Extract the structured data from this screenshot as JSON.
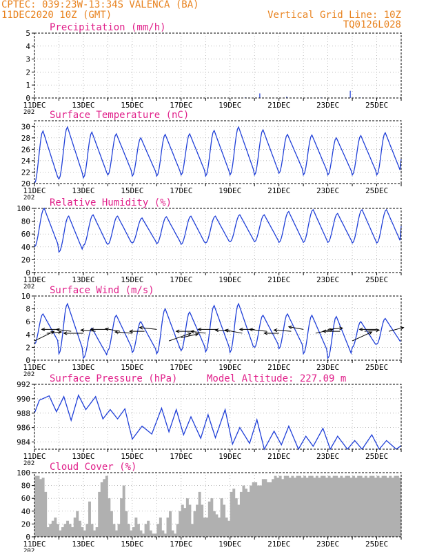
{
  "header": {
    "line1_left": "CPTEC:   039:23W-13:34S   VALENCA (BA)",
    "line2_left": "11DEC2020 10Z (GMT)",
    "line2_right": "Vertical Grid Line: 10Z",
    "line3_right": "TQ0126L028"
  },
  "colors": {
    "header": "#e8821e",
    "title": "#e0208a",
    "series": "#1f3fd8",
    "cloud": "#b0b0b0",
    "grid": "#9a9a9a"
  },
  "x_axis": {
    "tick_labels": [
      "11DEC",
      "13DEC",
      "15DEC",
      "17DEC",
      "19DEC",
      "21DEC",
      "23DEC",
      "25DEC"
    ],
    "year_fragment": "202",
    "start_day": 11,
    "end_day": 26,
    "label_every_days": 2
  },
  "chart_data": [
    {
      "id": "precipitation",
      "type": "bar",
      "title": "Precipitation (mm/h)",
      "ylim": [
        0,
        5
      ],
      "yticks": [
        0,
        1,
        2,
        3,
        4,
        5
      ],
      "x_unit": "days since 11DEC2020 10Z",
      "x": [
        8.6,
        9.2,
        10.3,
        11.7,
        12.9,
        13.3
      ],
      "values": [
        0.05,
        0.35,
        0.1,
        0.05,
        0.55,
        0.05
      ]
    },
    {
      "id": "temperature",
      "type": "line",
      "title": "Surface Temperature (nC)",
      "ylim": [
        20,
        31
      ],
      "yticks": [
        20,
        22,
        24,
        26,
        28,
        30
      ],
      "daily_min": [
        20.0,
        20.8,
        21.0,
        21.5,
        21.3,
        21.3,
        21.5,
        21.3,
        21.5,
        21.5,
        21.8,
        21.5,
        21.5,
        21.5,
        21.5
      ],
      "daily_max": [
        29.2,
        29.9,
        29.0,
        28.7,
        28.0,
        28.6,
        28.7,
        29.3,
        29.9,
        29.4,
        28.6,
        28.5,
        28.0,
        28.4,
        28.9
      ],
      "end_value": 24.3
    },
    {
      "id": "humidity",
      "type": "line",
      "title": "Relative Humidity (%)",
      "ylim": [
        0,
        100
      ],
      "yticks": [
        0,
        20,
        40,
        60,
        80,
        100
      ],
      "daily_max": [
        100,
        88,
        90,
        88,
        85,
        87,
        88,
        88,
        90,
        90,
        95,
        98,
        92,
        98,
        98
      ],
      "daily_min": [
        40,
        32,
        42,
        44,
        46,
        45,
        44,
        46,
        48,
        48,
        47,
        47,
        47,
        46,
        46
      ],
      "end_value": 72
    },
    {
      "id": "wind",
      "type": "line",
      "title": "Surface Wind (m/s)",
      "ylim": [
        0,
        10
      ],
      "yticks": [
        0,
        2,
        4,
        6,
        8,
        10
      ],
      "daily_max": [
        7.2,
        8.8,
        5.0,
        7.0,
        6.0,
        8.0,
        7.5,
        8.5,
        8.8,
        7.0,
        7.2,
        7.0,
        6.8,
        6.0,
        6.5
      ],
      "daily_min": [
        2.5,
        1.0,
        0.3,
        1.5,
        1.2,
        1.0,
        1.5,
        1.3,
        1.2,
        2.0,
        1.8,
        1.0,
        0.3,
        2.0,
        2.5
      ],
      "end_value": 3.0,
      "arrows": {
        "x_days": [
          0.0,
          0.5,
          1.0,
          1.5,
          2.0,
          2.5,
          3.0,
          3.5,
          4.0,
          4.5,
          5.0,
          5.5,
          6.0,
          6.5,
          7.0,
          7.5,
          8.0,
          8.5,
          9.0,
          9.5,
          10.0,
          10.5,
          11.0,
          11.5,
          12.0,
          12.5,
          13.0,
          13.5,
          14.0,
          14.5
        ],
        "base_ms": [
          3.0,
          4.2,
          4.8,
          4.5,
          4.2,
          4.5,
          4.8,
          4.5,
          4.2,
          4.5,
          4.8,
          3.0,
          3.5,
          4.5,
          4.2,
          4.8,
          4.5,
          4.2,
          4.8,
          4.5,
          4.2,
          4.5,
          4.8,
          4.2,
          4.8,
          4.5,
          3.0,
          4.5,
          4.8,
          4.5
        ],
        "u_days": [
          0.8,
          0.6,
          -0.7,
          -0.6,
          -0.8,
          -0.6,
          -0.7,
          -0.6,
          -0.7,
          -0.6,
          -0.7,
          0.9,
          0.7,
          -0.7,
          -0.6,
          -0.8,
          -0.6,
          -0.7,
          -0.6,
          -0.7,
          -0.6,
          -0.7,
          -0.6,
          0.7,
          0.6,
          -0.7,
          0.8,
          0.6,
          -0.7,
          0.6
        ],
        "v_ms": [
          1.5,
          0.2,
          0.0,
          0.3,
          0.0,
          0.2,
          0.0,
          0.4,
          0.2,
          0.0,
          0.3,
          1.2,
          0.6,
          0.0,
          0.3,
          0.0,
          0.2,
          0.5,
          0.0,
          0.3,
          0.0,
          0.2,
          0.4,
          0.6,
          0.2,
          0.0,
          1.4,
          0.2,
          0.0,
          0.6
        ]
      }
    },
    {
      "id": "pressure",
      "type": "line",
      "title": "Surface Pressure (hPa)",
      "annotation": "Model Altitude: 227.09 m",
      "ylim": [
        983,
        992
      ],
      "yticks": [
        984,
        986,
        988,
        990,
        992
      ],
      "x_days": [
        0.0,
        0.2,
        0.6,
        0.9,
        1.2,
        1.5,
        1.8,
        2.1,
        2.5,
        2.8,
        3.1,
        3.4,
        3.7,
        4.0,
        4.4,
        4.8,
        5.2,
        5.5,
        5.8,
        6.1,
        6.4,
        6.8,
        7.1,
        7.4,
        7.8,
        8.1,
        8.4,
        8.8,
        9.1,
        9.4,
        9.8,
        10.1,
        10.4,
        10.8,
        11.1,
        11.4,
        11.8,
        12.1,
        12.4,
        12.8,
        13.1,
        13.4,
        13.8,
        14.1,
        14.4,
        14.8,
        15.0
      ],
      "values": [
        988.0,
        989.8,
        990.4,
        988.2,
        990.3,
        987.0,
        990.5,
        988.5,
        990.3,
        987.2,
        988.5,
        987.2,
        988.6,
        984.4,
        986.2,
        985.1,
        988.7,
        985.4,
        988.5,
        985.0,
        987.5,
        984.5,
        987.8,
        984.6,
        988.5,
        983.7,
        986.0,
        983.8,
        987.1,
        983.0,
        985.5,
        983.6,
        986.2,
        983.0,
        984.8,
        983.4,
        985.9,
        983.0,
        984.8,
        983.0,
        984.2,
        983.0,
        985.0,
        983.0,
        984.2,
        983.0,
        983.5
      ]
    },
    {
      "id": "cloud",
      "type": "bar",
      "title": "Cloud Cover (%)",
      "ylim": [
        0,
        100
      ],
      "yticks": [
        0,
        20,
        40,
        60,
        80,
        100
      ],
      "x_days": [
        0.0,
        0.1,
        0.2,
        0.3,
        0.4,
        0.5,
        0.6,
        0.7,
        0.8,
        0.9,
        1.0,
        1.1,
        1.2,
        1.3,
        1.4,
        1.5,
        1.6,
        1.7,
        1.8,
        1.9,
        2.0,
        2.1,
        2.2,
        2.3,
        2.4,
        2.5,
        2.6,
        2.7,
        2.8,
        2.9,
        3.0,
        3.1,
        3.2,
        3.3,
        3.4,
        3.5,
        3.6,
        3.7,
        3.8,
        3.9,
        4.0,
        4.1,
        4.2,
        4.3,
        4.4,
        4.5,
        4.6,
        4.7,
        4.8,
        4.9,
        5.0,
        5.1,
        5.2,
        5.3,
        5.4,
        5.5,
        5.6,
        5.7,
        5.8,
        5.9,
        6.0,
        6.1,
        6.2,
        6.3,
        6.4,
        6.5,
        6.6,
        6.7,
        6.8,
        6.9,
        7.0,
        7.1,
        7.2,
        7.3,
        7.4,
        7.5,
        7.6,
        7.7,
        7.8,
        7.9,
        8.0,
        8.1,
        8.2,
        8.3,
        8.4,
        8.5,
        8.6,
        8.7,
        8.8,
        8.9,
        9.0,
        9.1,
        9.2,
        9.3,
        9.4,
        9.5,
        9.6,
        9.7,
        9.8,
        9.9,
        10.0,
        10.1,
        10.2,
        10.3,
        10.4,
        10.5,
        10.6,
        10.7,
        10.8,
        10.9,
        11.0,
        11.1,
        11.2,
        11.3,
        11.4,
        11.5,
        11.6,
        11.7,
        11.8,
        11.9,
        12.0,
        12.1,
        12.2,
        12.3,
        12.4,
        12.5,
        12.6,
        12.7,
        12.8,
        12.9,
        13.0,
        13.1,
        13.2,
        13.3,
        13.4,
        13.5,
        13.6,
        13.7,
        13.8,
        13.9,
        14.0,
        14.1,
        14.2,
        14.3,
        14.4,
        14.5,
        14.6,
        14.7,
        14.8,
        14.9
      ],
      "values": [
        95,
        95,
        90,
        92,
        70,
        15,
        20,
        25,
        30,
        20,
        10,
        15,
        20,
        25,
        20,
        15,
        30,
        40,
        25,
        15,
        10,
        20,
        55,
        20,
        10,
        15,
        70,
        85,
        90,
        95,
        60,
        40,
        20,
        10,
        20,
        60,
        80,
        40,
        20,
        10,
        15,
        30,
        20,
        10,
        5,
        20,
        25,
        10,
        5,
        5,
        20,
        30,
        10,
        5,
        30,
        40,
        10,
        5,
        20,
        40,
        50,
        45,
        60,
        50,
        20,
        40,
        50,
        70,
        50,
        30,
        30,
        55,
        60,
        40,
        35,
        30,
        60,
        50,
        30,
        25,
        70,
        75,
        60,
        50,
        70,
        80,
        75,
        70,
        80,
        85,
        85,
        80,
        80,
        90,
        90,
        85,
        85,
        90,
        95,
        92,
        95,
        90,
        95,
        95,
        92,
        95,
        92,
        95,
        95,
        92,
        95,
        92,
        95,
        95,
        92,
        95,
        92,
        95,
        95,
        92,
        95,
        92,
        95,
        95,
        92,
        95,
        92,
        95,
        95,
        92,
        95,
        92,
        95,
        95,
        92,
        95,
        92,
        95,
        95,
        92,
        95,
        92,
        95,
        95,
        92,
        95,
        92,
        95,
        95,
        92
      ]
    }
  ]
}
